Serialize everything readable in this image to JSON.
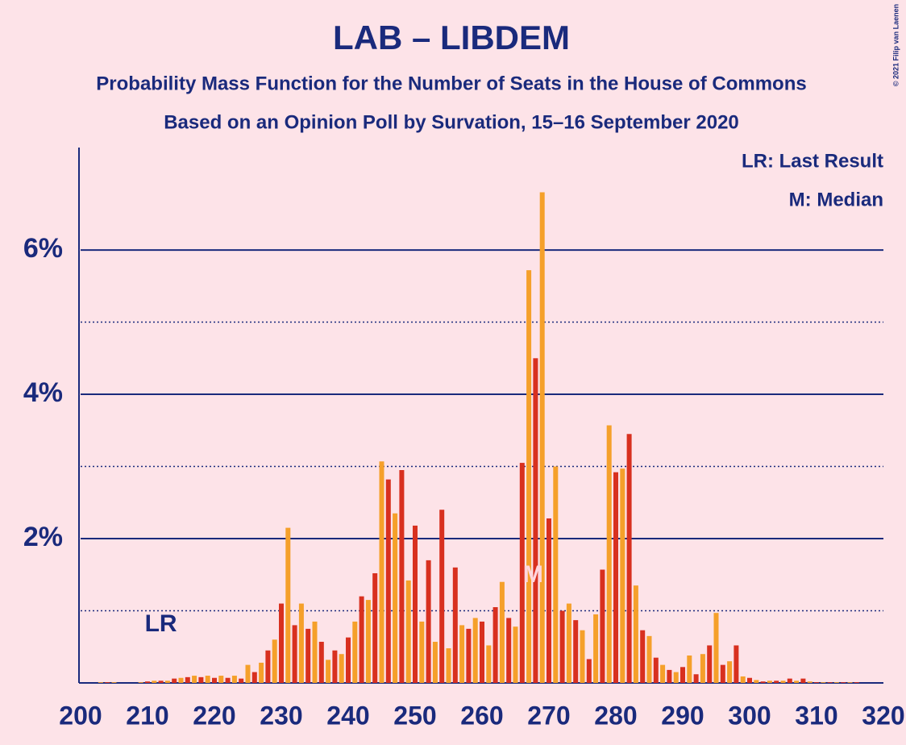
{
  "chart_data": {
    "type": "bar",
    "title": "LAB – LIBDEM",
    "subtitle": "Probability Mass Function for the Number of Seats in the House of Commons",
    "subtitle2": "Based on an Opinion Poll by Survation, 15–16 September 2020",
    "copyright": "© 2021 Filip van Laenen",
    "legend_lr": "LR: Last Result",
    "legend_m": "M: Median",
    "last_result": 212,
    "last_result_label": "LR",
    "median": 268,
    "median_label": "M",
    "x": [
      200,
      201,
      202,
      203,
      204,
      205,
      206,
      207,
      208,
      209,
      210,
      211,
      212,
      213,
      214,
      215,
      216,
      217,
      218,
      219,
      220,
      221,
      222,
      223,
      224,
      225,
      226,
      227,
      228,
      229,
      230,
      231,
      232,
      233,
      234,
      235,
      236,
      237,
      238,
      239,
      240,
      241,
      242,
      243,
      244,
      245,
      246,
      247,
      248,
      249,
      250,
      251,
      252,
      253,
      254,
      255,
      256,
      257,
      258,
      259,
      260,
      261,
      262,
      263,
      264,
      265,
      266,
      267,
      268,
      269,
      270,
      271,
      272,
      273,
      274,
      275,
      276,
      277,
      278,
      279,
      280,
      281,
      282,
      283,
      284,
      285,
      286,
      287,
      288,
      289,
      290,
      291,
      292,
      293,
      294,
      295,
      296,
      297,
      298,
      299,
      300,
      301,
      302,
      303,
      304,
      305,
      306,
      307,
      308,
      309,
      310,
      311,
      312,
      313,
      314,
      315,
      316,
      317,
      318,
      319,
      320
    ],
    "values": [
      0,
      0,
      0,
      0.01,
      0.01,
      0.01,
      0,
      0,
      0,
      0.01,
      0.02,
      0.03,
      0.03,
      0.03,
      0.06,
      0.07,
      0.08,
      0.1,
      0.08,
      0.1,
      0.07,
      0.1,
      0.07,
      0.1,
      0.06,
      0.25,
      0.15,
      0.28,
      0.45,
      0.6,
      1.1,
      2.15,
      0.8,
      1.1,
      0.75,
      0.85,
      0.57,
      0.32,
      0.45,
      0.4,
      0.63,
      0.85,
      1.2,
      1.15,
      1.52,
      3.07,
      2.82,
      2.35,
      2.95,
      1.42,
      2.18,
      0.85,
      1.7,
      0.57,
      2.4,
      0.48,
      1.6,
      0.8,
      0.75,
      0.9,
      0.85,
      0.52,
      1.05,
      1.4,
      0.9,
      0.78,
      3.05,
      5.72,
      4.5,
      6.8,
      2.28,
      3.0,
      1.0,
      1.1,
      0.87,
      0.73,
      0.33,
      0.95,
      1.57,
      3.57,
      2.92,
      2.97,
      3.45,
      1.35,
      0.73,
      0.65,
      0.35,
      0.25,
      0.18,
      0.15,
      0.22,
      0.38,
      0.12,
      0.4,
      0.52,
      0.97,
      0.25,
      0.3,
      0.52,
      0.09,
      0.07,
      0.04,
      0.02,
      0.03,
      0.03,
      0.03,
      0.06,
      0.03,
      0.06,
      0.02,
      0.01,
      0.01,
      0.01,
      0.01,
      0.01,
      0.01,
      0.01,
      0,
      0,
      0,
      0
    ],
    "bar_colors": [
      "#d8301f",
      "#f5a02a"
    ],
    "xlim": [
      200,
      320
    ],
    "xticks": [
      200,
      210,
      220,
      230,
      240,
      250,
      260,
      270,
      280,
      290,
      300,
      310,
      320
    ],
    "ylim": [
      0,
      7.42
    ],
    "yticks": [
      {
        "value": 2,
        "label": "2%"
      },
      {
        "value": 4,
        "label": "4%"
      },
      {
        "value": 6,
        "label": "6%"
      }
    ],
    "minor_yticks": [
      1,
      3,
      5
    ],
    "grid": true
  }
}
